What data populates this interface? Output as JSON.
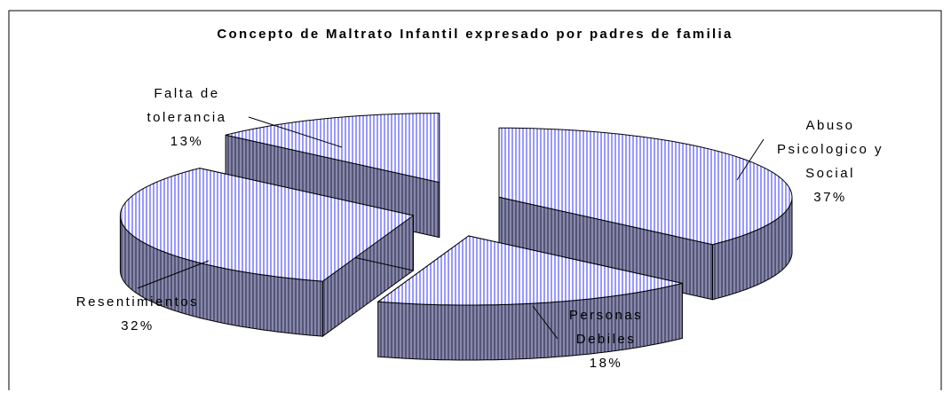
{
  "chart_data": {
    "type": "pie",
    "title": "Concepto de Maltrato Infantil expresado por padres de familia",
    "categories": [
      "Abuso Psicologico y Social",
      "Personas Debiles",
      "Resentimientos",
      "Falta de tolerancia"
    ],
    "values": [
      37,
      18,
      32,
      13
    ],
    "value_labels": [
      "37%",
      "18%",
      "32%",
      "13%"
    ],
    "color": "#9999ff",
    "side_color": "#555577"
  }
}
